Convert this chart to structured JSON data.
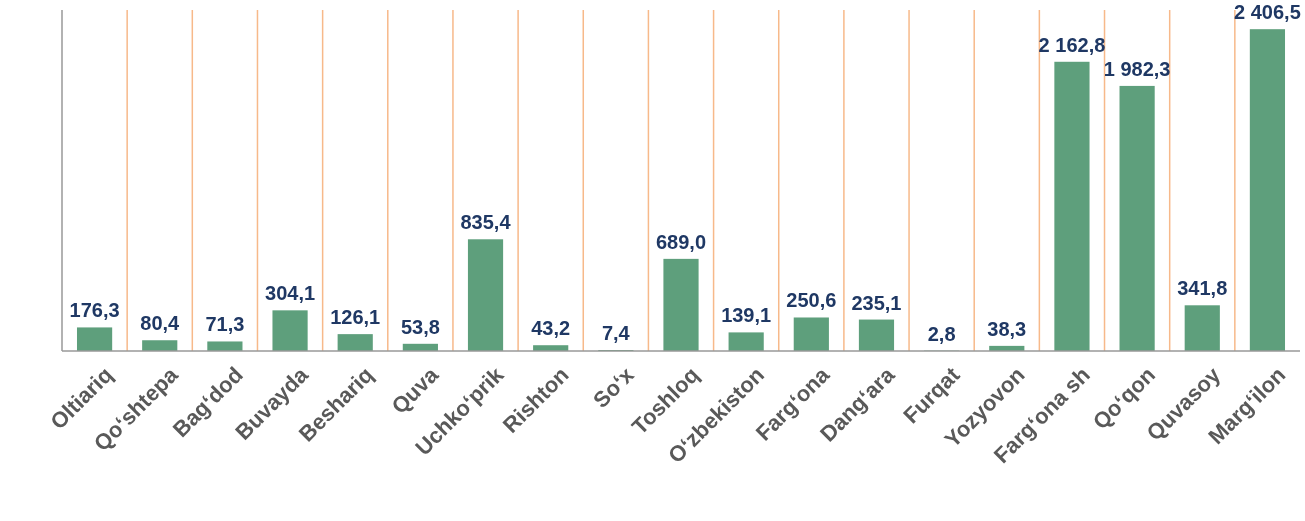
{
  "chart_data": {
    "type": "bar",
    "categories": [
      "Oltiariq",
      "Qo‘shtepa",
      "Bag‘dod",
      "Buvayda",
      "Beshariq",
      "Quva",
      "Uchko‘prik",
      "Rishton",
      "So‘x",
      "Toshloq",
      "O‘zbekiston",
      "Farg‘ona",
      "Dang‘ara",
      "Furqat",
      "Yozyovon",
      "Farg‘ona sh",
      "Qo‘qon",
      "Quvasoy",
      "Marg‘ilon"
    ],
    "values": [
      176.3,
      80.4,
      71.3,
      304.1,
      126.1,
      53.8,
      835.4,
      43.2,
      7.4,
      689.0,
      139.1,
      250.6,
      235.1,
      2.8,
      38.3,
      2162.8,
      1982.3,
      341.8,
      2406.5
    ],
    "value_labels": [
      "176,3",
      "80,4",
      "71,3",
      "304,1",
      "126,1",
      "53,8",
      "835,4",
      "43,2",
      "7,4",
      "689,0",
      "139,1",
      "250,6",
      "235,1",
      "2,8",
      "38,3",
      "2 162,8",
      "1 982,3",
      "341,8",
      "2 406,5"
    ],
    "color": "#5e9f7c",
    "ylim": [
      0,
      2550
    ],
    "grid": "x"
  }
}
